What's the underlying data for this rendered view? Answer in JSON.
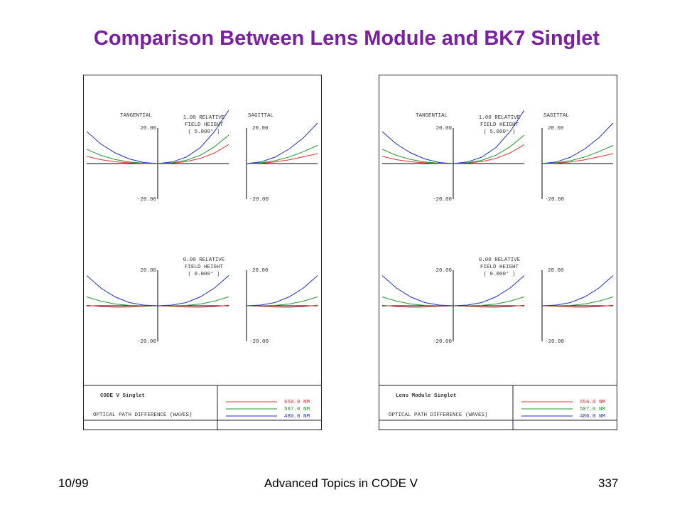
{
  "slide": {
    "title": "Comparison Between Lens Module and BK7 Singlet",
    "footer_left": "10/99",
    "footer_center": "Advanced Topics in CODE V",
    "footer_right": "337"
  },
  "colors": {
    "title": "#7a1fa2",
    "656.0 NM": "#e0302e",
    "587.0 NM": "#1f9a2a",
    "486.0 NM": "#1a2fc8"
  },
  "chart_data": [
    {
      "type": "line",
      "name": "CODE V Singlet",
      "caption": "OPTICAL PATH DIFFERENCE (WAVES)",
      "legend": [
        "656.0 NM",
        "587.0 NM",
        "486.0 NM"
      ],
      "ylim": [
        -20,
        20
      ],
      "plots": [
        {
          "field_label": [
            "1.00 RELATIVE",
            "FIELD HEIGHT",
            "( 5.000° )"
          ],
          "tangential": {
            "label": "TANGENTIAL",
            "ytick_top": "20.00",
            "ytick_bottom": "-20.00",
            "x": [
              -1,
              -0.8,
              -0.6,
              -0.4,
              -0.2,
              0,
              0.2,
              0.4,
              0.6,
              0.8,
              1
            ],
            "series": [
              {
                "name": "656.0 NM",
                "values": [
                  4.0,
                  2.2,
                  1.0,
                  0.4,
                  0.1,
                  0,
                  0.3,
                  1.1,
                  2.9,
                  6.0,
                  10.7
                ]
              },
              {
                "name": "587.0 NM",
                "values": [
                  8.0,
                  4.6,
                  2.3,
                  0.9,
                  0.2,
                  0,
                  0.4,
                  1.8,
                  4.7,
                  9.5,
                  16.0
                ]
              },
              {
                "name": "486.0 NM",
                "values": [
                  18.0,
                  11.0,
                  6.0,
                  2.6,
                  0.6,
                  0,
                  0.9,
                  3.6,
                  9.0,
                  18.0,
                  30.0
                ]
              }
            ]
          },
          "sagittal": {
            "label": "SAGITTAL",
            "ytick_top": "20.00",
            "ytick_bottom": "-20.00",
            "x": [
              0,
              0.2,
              0.4,
              0.6,
              0.8,
              1
            ],
            "series": [
              {
                "name": "656.0 NM",
                "values": [
                  0,
                  0.2,
                  0.9,
                  2.1,
                  3.8,
                  5.6
                ]
              },
              {
                "name": "587.0 NM",
                "values": [
                  0,
                  0.4,
                  1.6,
                  3.7,
                  6.7,
                  10.2
                ]
              },
              {
                "name": "486.0 NM",
                "values": [
                  0,
                  0.9,
                  3.6,
                  8.2,
                  14.5,
                  22.8
                ]
              }
            ]
          }
        },
        {
          "field_label": [
            "0.00 RELATIVE",
            "FIELD HEIGHT",
            "( 0.000° )"
          ],
          "tangential": {
            "label": "",
            "ytick_top": "20.00",
            "ytick_bottom": "-20.00",
            "x": [
              -1,
              -0.8,
              -0.6,
              -0.4,
              -0.2,
              0,
              0.2,
              0.4,
              0.6,
              0.8,
              1
            ],
            "series": [
              {
                "name": "656.0 NM",
                "values": [
                  0.3,
                  -0.4,
                  -0.8,
                  -0.7,
                  -0.3,
                  0,
                  -0.3,
                  -0.7,
                  -0.8,
                  -0.4,
                  0.3
                ]
              },
              {
                "name": "587.0 NM",
                "values": [
                  5.0,
                  2.6,
                  1.0,
                  0.2,
                  0.0,
                  0,
                  0.0,
                  0.2,
                  1.0,
                  2.6,
                  5.0
                ]
              },
              {
                "name": "486.0 NM",
                "values": [
                  17.0,
                  10.0,
                  5.0,
                  1.8,
                  0.4,
                  0,
                  0.4,
                  1.8,
                  5.0,
                  10.0,
                  17.0
                ]
              }
            ]
          },
          "sagittal": {
            "label": "",
            "ytick_top": "20.00",
            "ytick_bottom": "-20.00",
            "x": [
              0,
              0.2,
              0.4,
              0.6,
              0.8,
              1
            ],
            "series": [
              {
                "name": "656.0 NM",
                "values": [
                  0,
                  -0.3,
                  -0.7,
                  -0.8,
                  -0.4,
                  0.3
                ]
              },
              {
                "name": "587.0 NM",
                "values": [
                  0,
                  0.0,
                  0.2,
                  1.0,
                  2.6,
                  5.0
                ]
              },
              {
                "name": "486.0 NM",
                "values": [
                  0,
                  0.4,
                  1.8,
                  5.0,
                  10.0,
                  17.0
                ]
              }
            ]
          }
        }
      ]
    },
    {
      "type": "line",
      "name": "Lens Module Singlet",
      "caption": "OPTICAL PATH DIFFERENCE (WAVES)",
      "legend": [
        "656.0 NM",
        "587.0 NM",
        "486.0 NM"
      ],
      "ylim": [
        -20,
        20
      ],
      "plots": [
        {
          "field_label": [
            "1.00 RELATIVE",
            "FIELD HEIGHT",
            "( 5.000° )"
          ],
          "tangential": {
            "label": "TANGENTIAL",
            "ytick_top": "20.00",
            "ytick_bottom": "-20.00",
            "x": [
              -1,
              -0.8,
              -0.6,
              -0.4,
              -0.2,
              0,
              0.2,
              0.4,
              0.6,
              0.8,
              1
            ],
            "series": [
              {
                "name": "656.0 NM",
                "values": [
                  4.0,
                  2.2,
                  1.0,
                  0.4,
                  0.1,
                  0,
                  0.3,
                  1.1,
                  2.9,
                  6.0,
                  10.7
                ]
              },
              {
                "name": "587.0 NM",
                "values": [
                  8.0,
                  4.6,
                  2.3,
                  0.9,
                  0.2,
                  0,
                  0.4,
                  1.8,
                  4.7,
                  9.5,
                  16.0
                ]
              },
              {
                "name": "486.0 NM",
                "values": [
                  18.0,
                  11.0,
                  6.0,
                  2.6,
                  0.6,
                  0,
                  0.9,
                  3.6,
                  9.0,
                  18.0,
                  30.0
                ]
              }
            ]
          },
          "sagittal": {
            "label": "SAGITTAL",
            "ytick_top": "20.00",
            "ytick_bottom": "-20.00",
            "x": [
              0,
              0.2,
              0.4,
              0.6,
              0.8,
              1
            ],
            "series": [
              {
                "name": "656.0 NM",
                "values": [
                  0,
                  0.2,
                  0.9,
                  2.1,
                  3.8,
                  5.6
                ]
              },
              {
                "name": "587.0 NM",
                "values": [
                  0,
                  0.4,
                  1.6,
                  3.7,
                  6.7,
                  10.2
                ]
              },
              {
                "name": "486.0 NM",
                "values": [
                  0,
                  0.9,
                  3.6,
                  8.2,
                  14.5,
                  22.8
                ]
              }
            ]
          }
        },
        {
          "field_label": [
            "0.00 RELATIVE",
            "FIELD HEIGHT",
            "( 0.000° )"
          ],
          "tangential": {
            "label": "",
            "ytick_top": "20.00",
            "ytick_bottom": "-20.00",
            "x": [
              -1,
              -0.8,
              -0.6,
              -0.4,
              -0.2,
              0,
              0.2,
              0.4,
              0.6,
              0.8,
              1
            ],
            "series": [
              {
                "name": "656.0 NM",
                "values": [
                  0.3,
                  -0.4,
                  -0.8,
                  -0.7,
                  -0.3,
                  0,
                  -0.3,
                  -0.7,
                  -0.8,
                  -0.4,
                  0.3
                ]
              },
              {
                "name": "587.0 NM",
                "values": [
                  5.0,
                  2.6,
                  1.0,
                  0.2,
                  0.0,
                  0,
                  0.0,
                  0.2,
                  1.0,
                  2.6,
                  5.0
                ]
              },
              {
                "name": "486.0 NM",
                "values": [
                  17.0,
                  10.0,
                  5.0,
                  1.8,
                  0.4,
                  0,
                  0.4,
                  1.8,
                  5.0,
                  10.0,
                  17.0
                ]
              }
            ]
          },
          "sagittal": {
            "label": "",
            "ytick_top": "20.00",
            "ytick_bottom": "-20.00",
            "x": [
              0,
              0.2,
              0.4,
              0.6,
              0.8,
              1
            ],
            "series": [
              {
                "name": "656.0 NM",
                "values": [
                  0,
                  -0.3,
                  -0.7,
                  -0.8,
                  -0.4,
                  0.3
                ]
              },
              {
                "name": "587.0 NM",
                "values": [
                  0,
                  0.0,
                  0.2,
                  1.0,
                  2.6,
                  5.0
                ]
              },
              {
                "name": "486.0 NM",
                "values": [
                  0,
                  0.4,
                  1.8,
                  5.0,
                  10.0,
                  17.0
                ]
              }
            ]
          }
        }
      ]
    }
  ]
}
